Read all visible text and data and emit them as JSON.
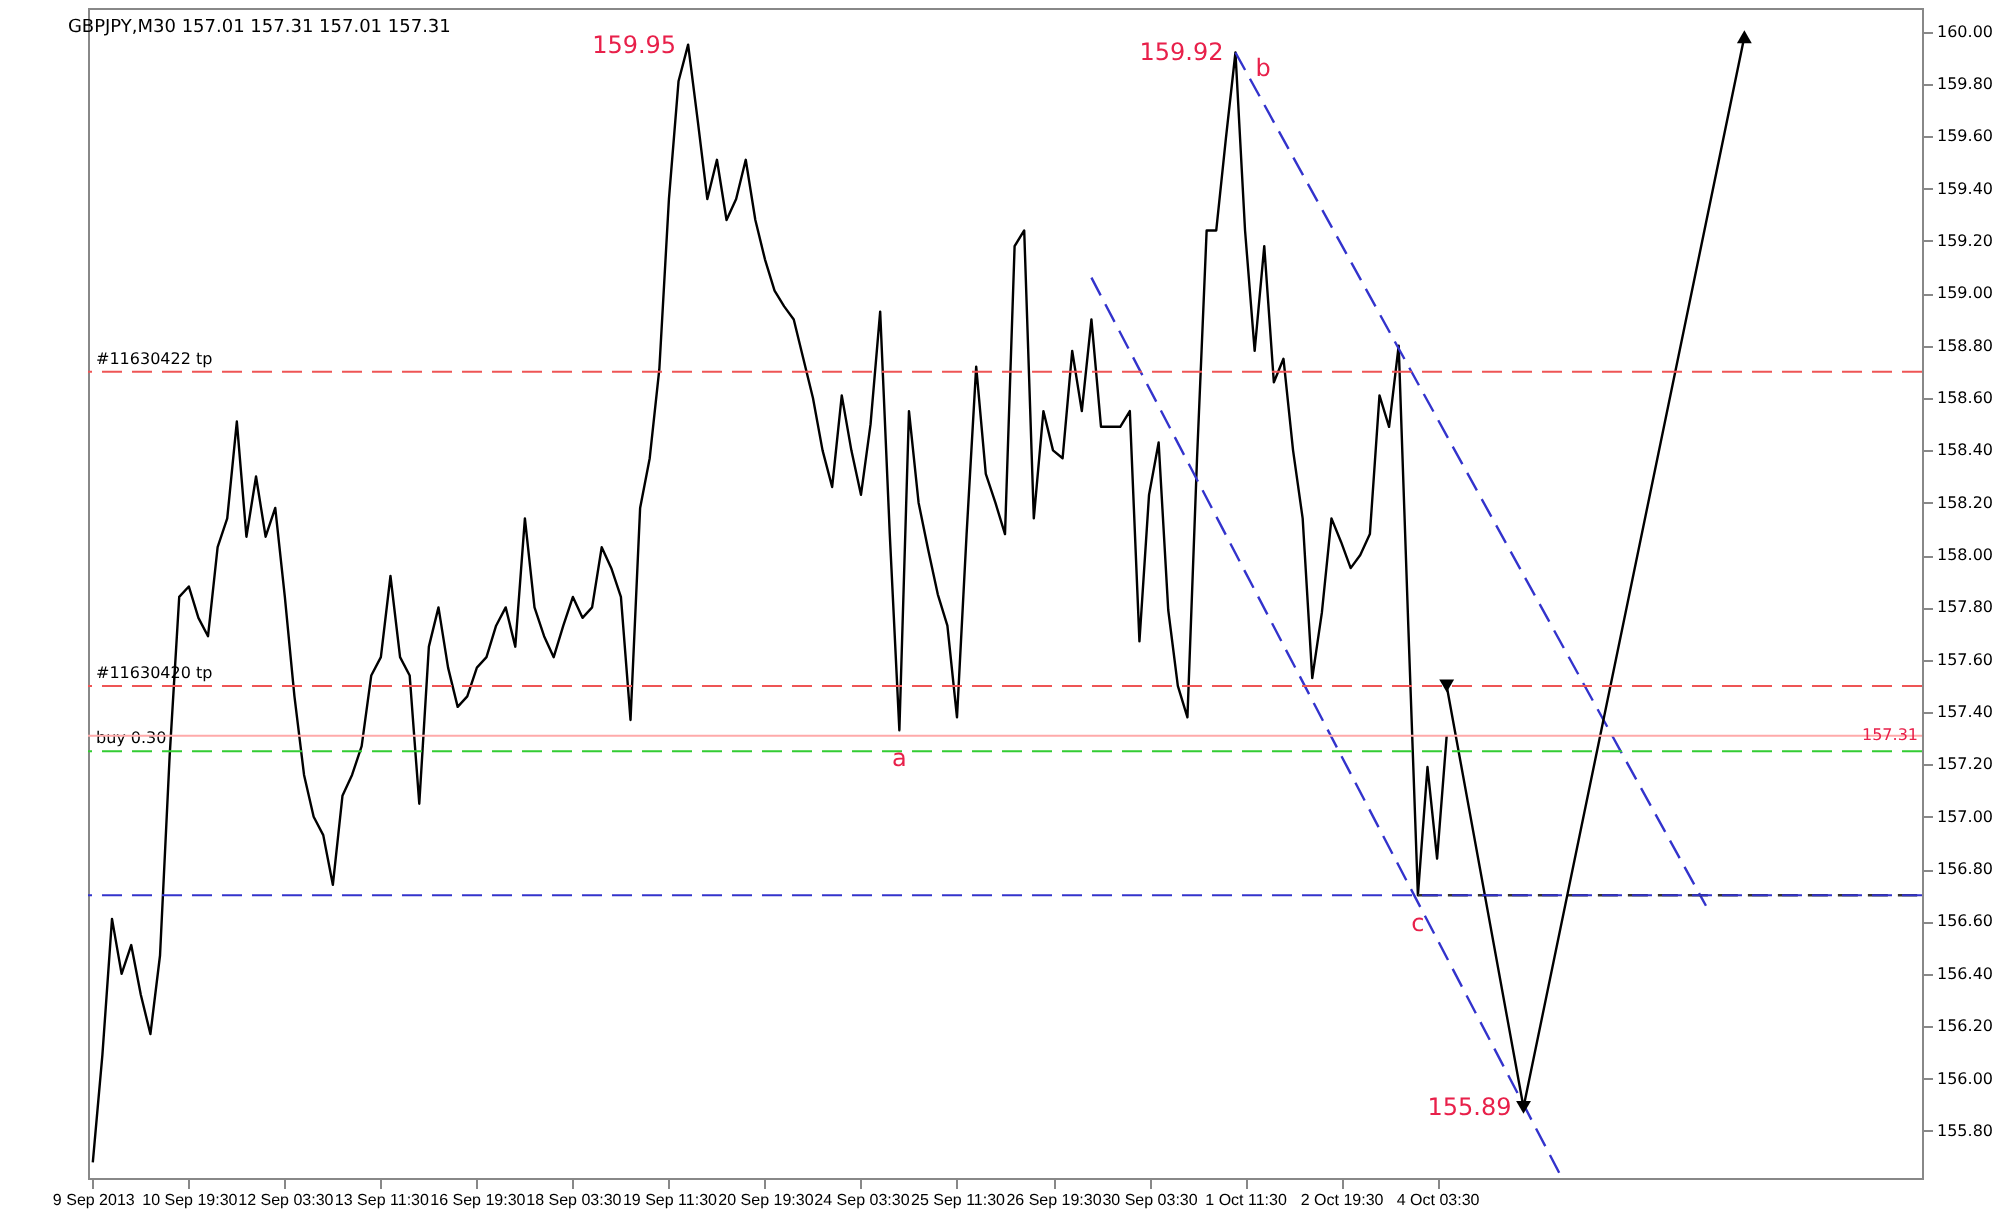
{
  "chart_data": {
    "type": "line",
    "title": "GBPJPY,M30  157.01 157.31 157.01 157.31",
    "categories": [
      "9 Sep 2013",
      null,
      null,
      null,
      null,
      null,
      null,
      null,
      null,
      null,
      "10 Sep 19:30",
      null,
      null,
      null,
      null,
      null,
      null,
      null,
      null,
      null,
      "12 Sep 03:30",
      null,
      null,
      null,
      null,
      null,
      null,
      null,
      null,
      null,
      "13 Sep 11:30",
      null,
      null,
      null,
      null,
      null,
      null,
      null,
      null,
      null,
      "16 Sep 19:30",
      null,
      null,
      null,
      null,
      null,
      null,
      null,
      null,
      null,
      "18 Sep 03:30",
      null,
      null,
      null,
      null,
      null,
      null,
      null,
      null,
      null,
      "19 Sep 11:30",
      null,
      null,
      null,
      null,
      null,
      null,
      null,
      null,
      null,
      "20 Sep 19:30",
      null,
      null,
      null,
      null,
      null,
      null,
      null,
      null,
      null,
      "24 Sep 03:30",
      null,
      null,
      null,
      null,
      null,
      null,
      null,
      null,
      null,
      "25 Sep 11:30",
      null,
      null,
      null,
      null,
      null,
      null,
      null,
      null,
      null,
      "26 Sep 19:30",
      null,
      null,
      null,
      null,
      null,
      null,
      null,
      null,
      null,
      "30 Sep 03:30",
      null,
      null,
      null,
      null,
      null,
      null,
      null,
      null,
      null,
      "1 Oct 11:30",
      null,
      null,
      null,
      null,
      null,
      null,
      null,
      null,
      null,
      "2 Oct 19:30",
      null,
      null,
      null,
      null,
      null,
      null,
      null,
      null,
      null,
      "4 Oct 03:30",
      null,
      null,
      null,
      null,
      null,
      null,
      null,
      null,
      null,
      null,
      null,
      null,
      null,
      null,
      null,
      null,
      null,
      null,
      null,
      null,
      null,
      null,
      null,
      null,
      null,
      null,
      null,
      null,
      null,
      null,
      null,
      null,
      null,
      null,
      null,
      null,
      null,
      null,
      null,
      null,
      null,
      null,
      null,
      null,
      null,
      null,
      null,
      null,
      null,
      null
    ],
    "ylim": [
      155.62,
      160.09
    ],
    "yticks": [
      {
        "value": 155.8,
        "label": "155.80"
      },
      {
        "value": 156.0,
        "label": "156.00"
      },
      {
        "value": 156.2,
        "label": "156.20"
      },
      {
        "value": 156.4,
        "label": "156.40"
      },
      {
        "value": 156.6,
        "label": "156.60"
      },
      {
        "value": 156.8,
        "label": "156.80"
      },
      {
        "value": 157.0,
        "label": "157.00"
      },
      {
        "value": 157.2,
        "label": "157.20"
      },
      {
        "value": 157.4,
        "label": "157.40"
      },
      {
        "value": 157.6,
        "label": "157.60"
      },
      {
        "value": 157.8,
        "label": "157.80"
      },
      {
        "value": 158.0,
        "label": "158.00"
      },
      {
        "value": 158.2,
        "label": "158.20"
      },
      {
        "value": 158.4,
        "label": "158.40"
      },
      {
        "value": 158.6,
        "label": "158.60"
      },
      {
        "value": 158.8,
        "label": "158.80"
      },
      {
        "value": 159.0,
        "label": "159.00"
      },
      {
        "value": 159.2,
        "label": "159.20"
      },
      {
        "value": 159.4,
        "label": "159.40"
      },
      {
        "value": 159.6,
        "label": "159.60"
      },
      {
        "value": 159.8,
        "label": "159.80"
      },
      {
        "value": 160.0,
        "label": "160.00"
      }
    ],
    "grid": false,
    "series": [
      {
        "color": "#000000",
        "line_style": "solid",
        "values": [
          155.68,
          156.09,
          156.61,
          156.4,
          156.51,
          156.32,
          156.17,
          156.47,
          157.23,
          157.84,
          157.88,
          157.76,
          157.69,
          158.03,
          158.14,
          158.51,
          158.07,
          158.3,
          158.07,
          158.18,
          157.84,
          157.46,
          157.16,
          157.0,
          156.93,
          156.74,
          157.08,
          157.16,
          157.27,
          157.54,
          157.61,
          157.92,
          157.61,
          157.54,
          157.05,
          157.65,
          157.8,
          157.57,
          157.42,
          157.46,
          157.57,
          157.61,
          157.73,
          157.8,
          157.65,
          158.14,
          157.8,
          157.69,
          157.61,
          157.73,
          157.84,
          157.76,
          157.8,
          158.03,
          157.95,
          157.84,
          157.37,
          158.18,
          158.37,
          158.71,
          159.36,
          159.81,
          159.95,
          159.66,
          159.36,
          159.51,
          159.28,
          159.36,
          159.51,
          159.28,
          159.13,
          159.01,
          158.95,
          158.9,
          158.75,
          158.6,
          158.4,
          158.26,
          158.61,
          158.4,
          158.23,
          158.5,
          158.93,
          158.08,
          157.33,
          158.55,
          158.2,
          158.02,
          157.85,
          157.73,
          157.38,
          158.08,
          158.72,
          158.31,
          158.2,
          158.08,
          159.18,
          159.24,
          158.14,
          158.55,
          158.4,
          158.37,
          158.78,
          158.55,
          158.9,
          158.49,
          158.49,
          158.49,
          158.55,
          157.67,
          158.23,
          158.43,
          157.79,
          157.5,
          157.38,
          158.37,
          159.24,
          159.24,
          159.59,
          159.92,
          159.24,
          158.78,
          159.18,
          158.66,
          158.75,
          158.4,
          158.14,
          157.53,
          157.78,
          158.14,
          158.05,
          157.95,
          158.0,
          158.08,
          158.61,
          158.49,
          158.8,
          157.73,
          156.7,
          157.19,
          156.84,
          157.31,
          null,
          null,
          null,
          null,
          null,
          null,
          null,
          null,
          null,
          null,
          null,
          null,
          null,
          null,
          null,
          null,
          null,
          null,
          null,
          null,
          null,
          null,
          null,
          null,
          null,
          null,
          null,
          null,
          null,
          null,
          null,
          null,
          null,
          null,
          null,
          null,
          null,
          null,
          null,
          null,
          null,
          null,
          null,
          null,
          null,
          null,
          null,
          null,
          null
        ],
        "value_labels": [
          null,
          null,
          null,
          null,
          null,
          null,
          null,
          null,
          null,
          null,
          null,
          null,
          null,
          null,
          null,
          null,
          null,
          null,
          null,
          null,
          null,
          null,
          null,
          null,
          null,
          null,
          null,
          null,
          null,
          null,
          null,
          null,
          null,
          null,
          null,
          null,
          null,
          null,
          null,
          null,
          null,
          null,
          null,
          null,
          null,
          null,
          null,
          null,
          null,
          null,
          null,
          null,
          null,
          null,
          null,
          null,
          null,
          null,
          null,
          null,
          null,
          null,
          "159.95",
          null,
          null,
          null,
          null,
          null,
          null,
          null,
          null,
          null,
          null,
          null,
          null,
          null,
          null,
          null,
          null,
          null,
          null,
          null,
          null,
          null,
          null,
          null,
          null,
          null,
          null,
          null,
          null,
          null,
          null,
          null,
          null,
          null,
          null,
          null,
          null,
          null,
          null,
          null,
          null,
          null,
          null,
          null,
          null,
          null,
          null,
          null,
          null,
          null,
          null,
          null,
          null,
          null,
          null,
          null,
          null,
          "159.92",
          null,
          null,
          null,
          null,
          null,
          null,
          null,
          null,
          null,
          null,
          null,
          null,
          null,
          null,
          null,
          null,
          null,
          null,
          null,
          null,
          null,
          null,
          null,
          null,
          null,
          null,
          null,
          null,
          null,
          null,
          null,
          null,
          null,
          null,
          null,
          null,
          null,
          null,
          null,
          null,
          null,
          null,
          null,
          null,
          null,
          null,
          null,
          null,
          null,
          null,
          null,
          null,
          null,
          null,
          null,
          null,
          null,
          null,
          null,
          null,
          null,
          null,
          null,
          null,
          null,
          null,
          null,
          null,
          null,
          null,
          null
        ]
      },
      {
        "color": "#3333cc",
        "line_style": "dashed",
        "values": [
          null,
          null,
          null,
          null,
          null,
          null,
          null,
          null,
          null,
          null,
          null,
          null,
          null,
          null,
          null,
          null,
          null,
          null,
          null,
          null,
          null,
          null,
          null,
          null,
          null,
          null,
          null,
          null,
          null,
          null,
          null,
          null,
          null,
          null,
          null,
          null,
          null,
          null,
          null,
          null,
          null,
          null,
          null,
          null,
          null,
          null,
          null,
          null,
          null,
          null,
          null,
          null,
          null,
          null,
          null,
          null,
          null,
          null,
          null,
          null,
          null,
          null,
          null,
          null,
          null,
          null,
          null,
          null,
          null,
          null,
          null,
          null,
          null,
          null,
          null,
          null,
          null,
          null,
          null,
          null,
          null,
          null,
          null,
          null,
          null,
          null,
          null,
          null,
          null,
          null,
          null,
          null,
          null,
          null,
          null,
          null,
          null,
          null,
          null,
          null,
          null,
          null,
          null,
          null,
          null,
          null,
          null,
          null,
          null,
          null,
          null,
          null,
          null,
          null,
          null,
          null,
          null,
          null,
          null,
          159.92,
          null,
          null,
          null,
          null,
          null,
          null,
          null,
          null,
          null,
          null,
          null,
          null,
          null,
          null,
          null,
          null,
          null,
          null,
          null,
          null,
          null,
          null,
          null,
          null,
          null,
          null,
          null,
          null,
          null,
          null,
          null,
          null,
          null,
          null,
          null,
          null,
          null,
          null,
          null,
          null,
          null,
          null,
          null,
          null,
          null,
          null,
          null,
          null,
          156.66,
          null,
          null,
          null,
          null,
          null,
          null,
          null,
          null,
          null,
          null,
          null,
          null,
          null,
          null,
          null,
          null,
          null,
          null,
          null,
          null,
          null,
          null
        ]
      },
      {
        "color": "#3333cc",
        "line_style": "dashed",
        "values": [
          null,
          null,
          null,
          null,
          null,
          null,
          null,
          null,
          null,
          null,
          null,
          null,
          null,
          null,
          null,
          null,
          null,
          null,
          null,
          null,
          null,
          null,
          null,
          null,
          null,
          null,
          null,
          null,
          null,
          null,
          null,
          null,
          null,
          null,
          null,
          null,
          null,
          null,
          null,
          null,
          null,
          null,
          null,
          null,
          null,
          null,
          null,
          null,
          null,
          null,
          null,
          null,
          null,
          null,
          null,
          null,
          null,
          null,
          null,
          null,
          null,
          null,
          null,
          null,
          null,
          null,
          null,
          null,
          null,
          null,
          null,
          null,
          null,
          null,
          null,
          null,
          null,
          null,
          null,
          null,
          null,
          null,
          null,
          null,
          null,
          null,
          null,
          null,
          null,
          null,
          null,
          null,
          null,
          null,
          null,
          null,
          null,
          null,
          null,
          null,
          null,
          null,
          null,
          null,
          159.06,
          null,
          null,
          null,
          null,
          null,
          null,
          null,
          null,
          null,
          null,
          null,
          null,
          null,
          null,
          null,
          null,
          null,
          null,
          null,
          null,
          null,
          null,
          null,
          null,
          null,
          null,
          null,
          null,
          null,
          null,
          null,
          null,
          null,
          null,
          null,
          null,
          null,
          null,
          null,
          null,
          null,
          null,
          null,
          null,
          null,
          null,
          null,
          null,
          155.62,
          null,
          null,
          null,
          null,
          null,
          null,
          null,
          null,
          null,
          null,
          null,
          null,
          null,
          null,
          null,
          null,
          null,
          null,
          null,
          null,
          null,
          null,
          null,
          null,
          null,
          null,
          null,
          null,
          null,
          null,
          null,
          null,
          null,
          null,
          null,
          null,
          null
        ]
      },
      {
        "color": "#333333",
        "line_style": "dashed",
        "values": [
          null,
          null,
          null,
          null,
          null,
          null,
          null,
          null,
          null,
          null,
          null,
          null,
          null,
          null,
          null,
          null,
          null,
          null,
          null,
          null,
          null,
          null,
          null,
          null,
          null,
          null,
          null,
          null,
          null,
          null,
          null,
          null,
          null,
          null,
          null,
          null,
          null,
          null,
          null,
          null,
          null,
          null,
          null,
          null,
          null,
          null,
          null,
          null,
          null,
          null,
          null,
          null,
          null,
          null,
          null,
          null,
          null,
          null,
          null,
          null,
          null,
          null,
          null,
          null,
          null,
          null,
          null,
          null,
          null,
          null,
          null,
          null,
          null,
          null,
          null,
          null,
          null,
          null,
          null,
          null,
          null,
          null,
          null,
          null,
          null,
          null,
          null,
          null,
          null,
          null,
          null,
          null,
          null,
          null,
          null,
          null,
          null,
          null,
          null,
          null,
          null,
          null,
          null,
          null,
          null,
          null,
          null,
          null,
          null,
          null,
          null,
          null,
          null,
          null,
          null,
          null,
          null,
          null,
          null,
          null,
          null,
          null,
          null,
          null,
          null,
          null,
          null,
          null,
          null,
          null,
          null,
          null,
          null,
          null,
          null,
          null,
          null,
          null,
          156.7,
          null,
          null,
          null,
          null,
          null,
          null,
          null,
          null,
          null,
          null,
          null,
          null,
          null,
          null,
          null,
          null,
          null,
          null,
          null,
          null,
          null,
          null,
          null,
          null,
          null,
          null,
          null,
          null,
          null,
          null,
          null,
          null,
          null,
          null,
          null,
          null,
          null,
          null,
          null,
          null,
          null,
          null,
          null,
          null,
          null,
          null,
          null,
          null,
          null,
          null,
          null,
          156.7
        ]
      },
      {
        "color": "#000000",
        "line_style": "solid",
        "marker": "triangle",
        "values": [
          null,
          null,
          null,
          null,
          null,
          null,
          null,
          null,
          null,
          null,
          null,
          null,
          null,
          null,
          null,
          null,
          null,
          null,
          null,
          null,
          null,
          null,
          null,
          null,
          null,
          null,
          null,
          null,
          null,
          null,
          null,
          null,
          null,
          null,
          null,
          null,
          null,
          null,
          null,
          null,
          null,
          null,
          null,
          null,
          null,
          null,
          null,
          null,
          null,
          null,
          null,
          null,
          null,
          null,
          null,
          null,
          null,
          null,
          null,
          null,
          null,
          null,
          null,
          null,
          null,
          null,
          null,
          null,
          null,
          null,
          null,
          null,
          null,
          null,
          null,
          null,
          null,
          null,
          null,
          null,
          null,
          null,
          null,
          null,
          null,
          null,
          null,
          null,
          null,
          null,
          null,
          null,
          null,
          null,
          null,
          null,
          null,
          null,
          null,
          null,
          null,
          null,
          null,
          null,
          null,
          null,
          null,
          null,
          null,
          null,
          null,
          null,
          null,
          null,
          null,
          null,
          null,
          null,
          null,
          null,
          null,
          null,
          null,
          null,
          null,
          null,
          null,
          null,
          null,
          null,
          null,
          null,
          null,
          null,
          null,
          null,
          null,
          null,
          null,
          null,
          null,
          157.5,
          null,
          null,
          null,
          null,
          null,
          null,
          null,
          155.89,
          null,
          null,
          null,
          null,
          null,
          null,
          null,
          null,
          null,
          null,
          null,
          null,
          null,
          null,
          null,
          null,
          null,
          null,
          null,
          null,
          null,
          null,
          159.98,
          null,
          null,
          null,
          null,
          null,
          null,
          null,
          null,
          null,
          null,
          null,
          null,
          null,
          null,
          null,
          null,
          null,
          null
        ],
        "value_labels": [
          null,
          null,
          null,
          null,
          null,
          null,
          null,
          null,
          null,
          null,
          null,
          null,
          null,
          null,
          null,
          null,
          null,
          null,
          null,
          null,
          null,
          null,
          null,
          null,
          null,
          null,
          null,
          null,
          null,
          null,
          null,
          null,
          null,
          null,
          null,
          null,
          null,
          null,
          null,
          null,
          null,
          null,
          null,
          null,
          null,
          null,
          null,
          null,
          null,
          null,
          null,
          null,
          null,
          null,
          null,
          null,
          null,
          null,
          null,
          null,
          null,
          null,
          null,
          null,
          null,
          null,
          null,
          null,
          null,
          null,
          null,
          null,
          null,
          null,
          null,
          null,
          null,
          null,
          null,
          null,
          null,
          null,
          null,
          null,
          null,
          null,
          null,
          null,
          null,
          null,
          null,
          null,
          null,
          null,
          null,
          null,
          null,
          null,
          null,
          null,
          null,
          null,
          null,
          null,
          null,
          null,
          null,
          null,
          null,
          null,
          null,
          null,
          null,
          null,
          null,
          null,
          null,
          null,
          null,
          null,
          null,
          null,
          null,
          null,
          null,
          null,
          null,
          null,
          null,
          null,
          null,
          null,
          null,
          null,
          null,
          null,
          null,
          null,
          null,
          null,
          null,
          null,
          null,
          null,
          null,
          null,
          null,
          null,
          null,
          "155.89",
          null,
          null,
          null,
          null,
          null,
          null,
          null,
          null,
          null,
          null,
          null,
          null,
          null,
          null,
          null,
          null,
          null,
          null,
          null,
          null,
          null,
          null,
          null,
          null,
          null,
          null,
          null,
          null,
          null,
          null,
          null,
          null,
          null,
          null,
          null,
          null,
          null,
          null,
          null,
          null,
          null
        ]
      }
    ],
    "ref_lines": [
      {
        "axis": "y",
        "value": 158.7,
        "label": "#11630422 tp",
        "color": "#ee5555",
        "line_style": "dashed"
      },
      {
        "axis": "y",
        "value": 157.5,
        "label": "#11630420 tp",
        "color": "#ee5555",
        "line_style": "dashed"
      },
      {
        "axis": "y",
        "value": 157.25,
        "label": "buy 0.30",
        "color": "#33cc33",
        "line_style": "dashed"
      },
      {
        "axis": "y",
        "value": 157.31,
        "label": "157.31",
        "color": "#ffaaaa",
        "line_style": "solid"
      },
      {
        "axis": "y",
        "value": 156.7,
        "color": "#3333cc",
        "line_style": "dashed"
      }
    ],
    "annotations": [
      {
        "text": "a",
        "y": 157.33
      },
      "b",
      {
        "text": "c",
        "y": 156.7
      }
    ]
  }
}
